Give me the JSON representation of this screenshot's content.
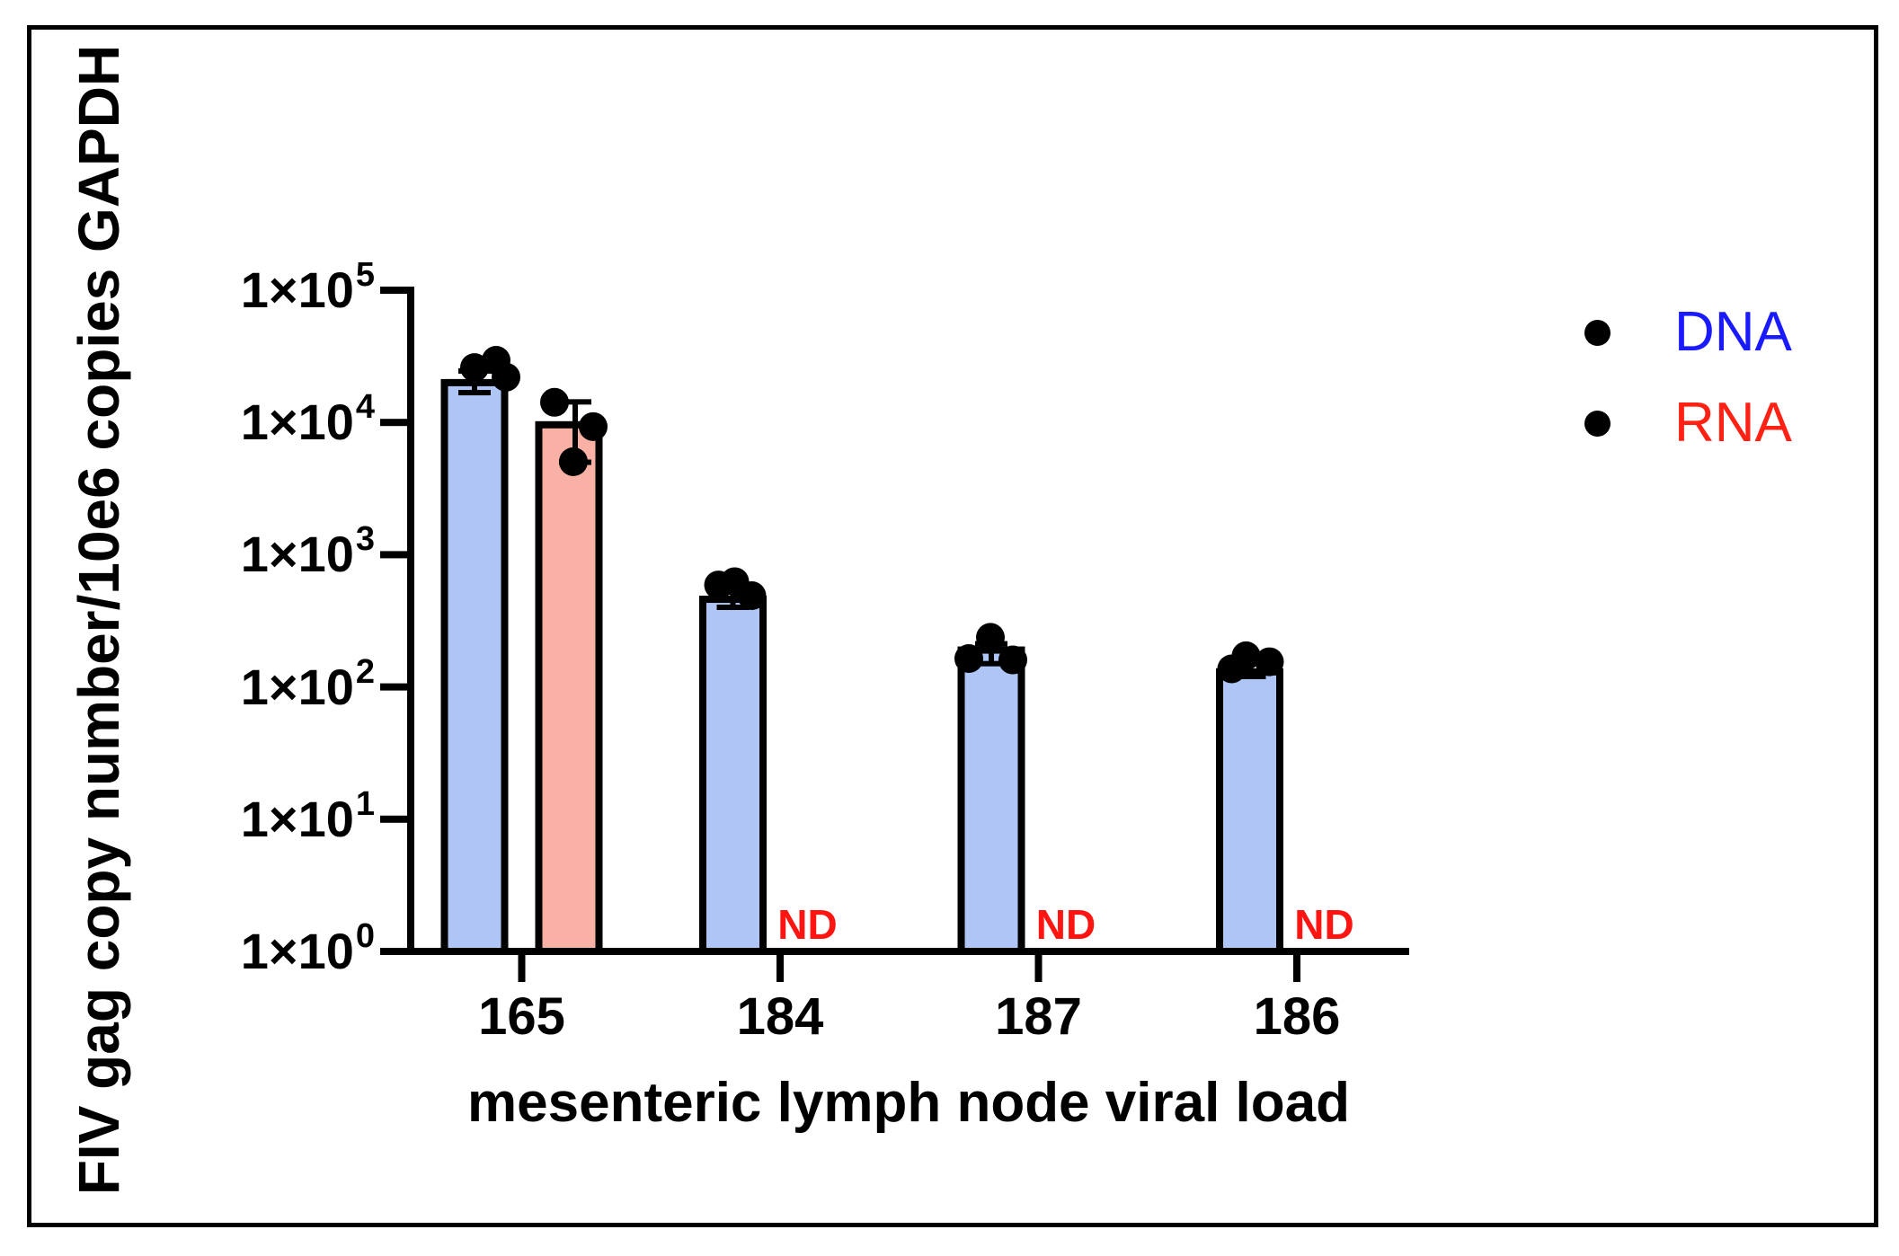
{
  "figure": {
    "y_axis_title": "FIV gag copy number/10e6 copies GAPDH",
    "x_axis_title": "mesenteric lymph node viral load",
    "y_tick_labels": [
      {
        "base": "1×10",
        "sup": "5"
      },
      {
        "base": "1×10",
        "sup": "4"
      },
      {
        "base": "1×10",
        "sup": "3"
      },
      {
        "base": "1×10",
        "sup": "2"
      },
      {
        "base": "1×10",
        "sup": "1"
      },
      {
        "base": "1×10",
        "sup": "0"
      }
    ],
    "x_tick_labels": [
      "165",
      "184",
      "187",
      "186"
    ],
    "legend": [
      {
        "label": "DNA",
        "color": "#1a1aff",
        "marker": "filled-circle-icon",
        "marker_color": "#000000"
      },
      {
        "label": "RNA",
        "color": "#ff2114",
        "marker": "filled-circle-icon",
        "marker_color": "#000000"
      }
    ],
    "nd_text": "ND",
    "colors": {
      "dna_bar_fill": "#aec5f5",
      "rna_bar_fill": "#f9b1a5",
      "bar_border": "#000000",
      "data_point": "#000000",
      "axis": "#000000",
      "tick_text": "#000000",
      "legend_dna_text": "#1a1aff",
      "legend_rna_text": "#ff2114",
      "nd_text_color": "#fe1511"
    }
  },
  "chart_data": {
    "type": "bar",
    "scale": "log10",
    "title": "",
    "xlabel": "mesenteric lymph node viral load",
    "ylabel": "FIV gag copy number/10e6 copies GAPDH",
    "ylim": [
      1,
      100000
    ],
    "y_tick_exponents": [
      5,
      4,
      3,
      2,
      1,
      0
    ],
    "categories": [
      "165",
      "184",
      "187",
      "186"
    ],
    "legend_position": "top-right",
    "grid": false,
    "series": [
      {
        "name": "DNA",
        "bar_fill": "#aec5f5",
        "values": [
          20000,
          460,
          190,
          130
        ],
        "error_bars": [
          [
            16800,
            24500
          ],
          [
            400,
            540
          ],
          [
            150,
            212
          ],
          [
            120,
            178
          ]
        ],
        "points": [
          [
            [
              0,
              26000
            ],
            [
              24,
              29500
            ],
            [
              35,
              22000
            ]
          ],
          [
            [
              -16,
              590
            ],
            [
              2,
              625
            ],
            [
              21,
              490
            ]
          ],
          [
            [
              -1,
              237
            ],
            [
              -25,
              164
            ],
            [
              24,
              160
            ]
          ],
          [
            [
              -4,
              172
            ],
            [
              -20,
              137
            ],
            [
              22,
              155
            ]
          ]
        ],
        "nd": [
          false,
          false,
          false,
          false
        ]
      },
      {
        "name": "RNA",
        "bar_fill": "#f9b1a5",
        "values": [
          9600,
          null,
          null,
          null
        ],
        "error_bars": [
          [
            5000,
            14300
          ],
          null,
          null,
          null
        ],
        "points": [
          [
            [
              -16,
              14200
            ],
            [
              27,
              9300
            ],
            [
              5,
              5050
            ]
          ],
          null,
          null,
          null
        ],
        "nd": [
          false,
          true,
          true,
          true
        ]
      }
    ]
  }
}
